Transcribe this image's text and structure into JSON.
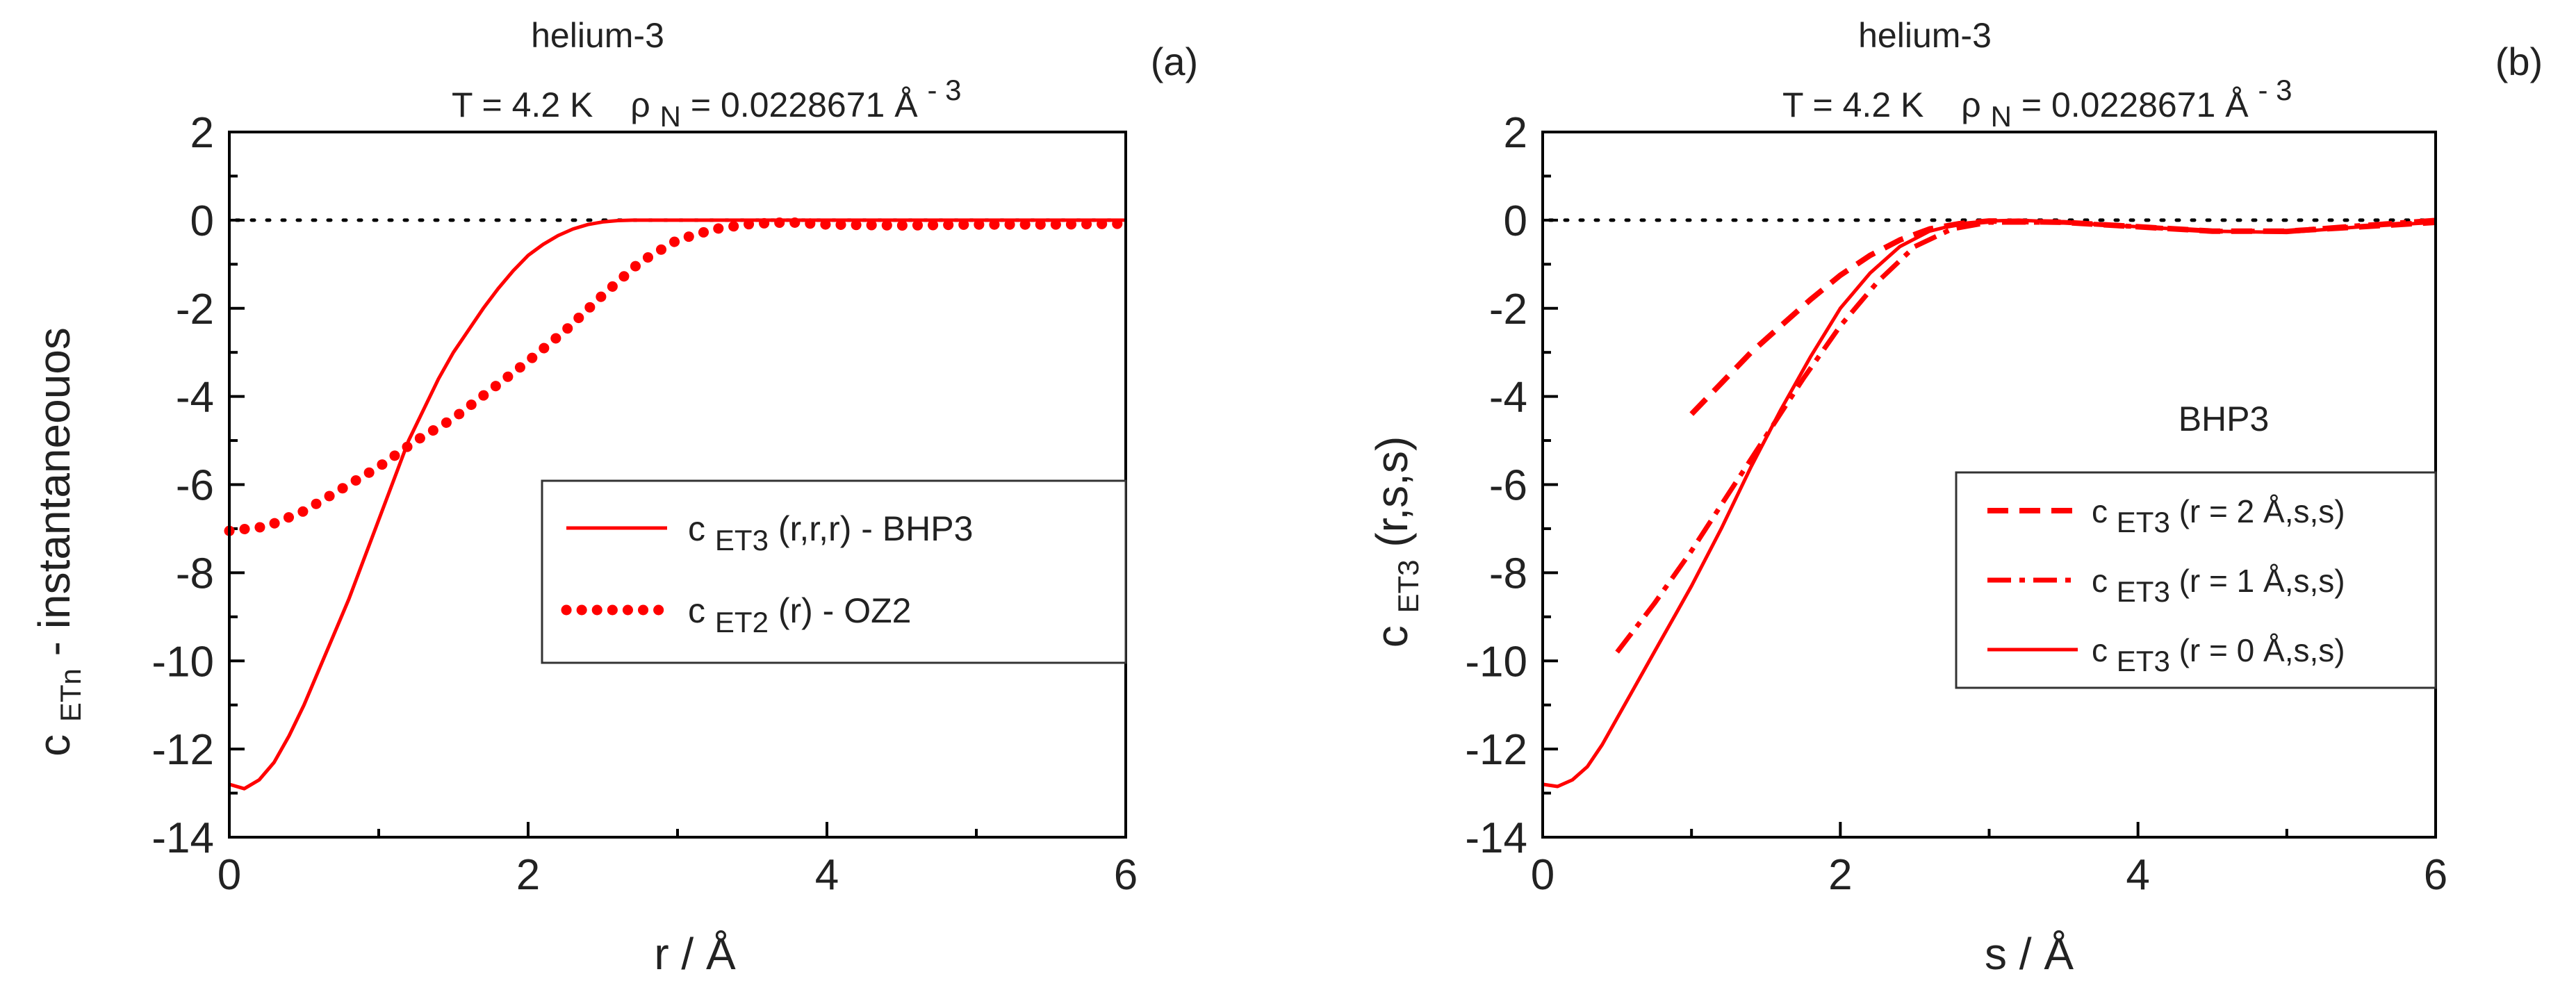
{
  "chart_data": [
    {
      "type": "line",
      "panel_label": "(a)",
      "title": "helium-3",
      "subtitle": {
        "temp": "T = 4.2 K",
        "rho_symbol": "ρ",
        "rho_sub": "N",
        "rho_value": " = 0.0228671 Å",
        "rho_sup": "- 3"
      },
      "xlabel": "r / Å",
      "ylabel": {
        "main": "c",
        "sub": "ETn",
        "rest": " - instantaneouos"
      },
      "xlim": [
        0,
        6
      ],
      "ylim": [
        -14,
        2
      ],
      "xticks": [
        0,
        2,
        4,
        6
      ],
      "yticks": [
        2,
        0,
        -2,
        -4,
        -6,
        -8,
        -10,
        -12,
        -14
      ],
      "zero_line": true,
      "legend_position": "center-right",
      "legend": [
        {
          "main": "c",
          "sub": "ET3",
          "rest": "(r,r,r) - BHP3"
        },
        {
          "main": "c",
          "sub": "ET2",
          "rest": "(r) - OZ2"
        }
      ],
      "series": [
        {
          "name": "cET3(r,r,r) - BHP3",
          "style": "solid",
          "color": "#ff0000",
          "x": [
            0,
            0.1,
            0.2,
            0.3,
            0.4,
            0.5,
            0.6,
            0.7,
            0.8,
            0.9,
            1.0,
            1.1,
            1.2,
            1.3,
            1.4,
            1.5,
            1.6,
            1.7,
            1.8,
            1.9,
            2.0,
            2.1,
            2.2,
            2.3,
            2.4,
            2.5,
            2.6,
            2.7,
            2.8,
            2.9,
            3.0,
            3.5,
            4.0,
            4.5,
            5.0,
            5.5,
            6.0
          ],
          "y": [
            -12.8,
            -12.9,
            -12.7,
            -12.3,
            -11.7,
            -11.0,
            -10.2,
            -9.4,
            -8.6,
            -7.7,
            -6.8,
            -5.9,
            -5.0,
            -4.3,
            -3.6,
            -3.0,
            -2.5,
            -2.0,
            -1.55,
            -1.15,
            -0.8,
            -0.55,
            -0.35,
            -0.2,
            -0.1,
            -0.04,
            -0.01,
            0,
            0,
            0,
            0,
            0,
            0,
            0,
            0,
            0,
            0
          ]
        },
        {
          "name": "cET2(r) - OZ2",
          "style": "dotted",
          "color": "#ff0000",
          "x": [
            0,
            0.25,
            0.5,
            0.75,
            1.0,
            1.25,
            1.5,
            1.75,
            2.0,
            2.25,
            2.5,
            2.75,
            3.0,
            3.25,
            3.5,
            3.75,
            4.0,
            4.5,
            5.0,
            5.5,
            6.0
          ],
          "y": [
            -7.05,
            -6.95,
            -6.6,
            -6.1,
            -5.6,
            -5.0,
            -4.5,
            -3.85,
            -3.2,
            -2.5,
            -1.7,
            -0.95,
            -0.45,
            -0.2,
            -0.08,
            -0.05,
            -0.1,
            -0.12,
            -0.1,
            -0.1,
            -0.08
          ]
        }
      ]
    },
    {
      "type": "line",
      "panel_label": "(b)",
      "title": "helium-3",
      "subtitle": {
        "temp": "T = 4.2 K",
        "rho_symbol": "ρ",
        "rho_sub": "N",
        "rho_value": " = 0.0228671 Å",
        "rho_sup": "- 3"
      },
      "xlabel": "s / Å",
      "ylabel": {
        "main": "c",
        "sub": "ET3",
        "rest": "(r,s,s)"
      },
      "annotation": "BHP3",
      "xlim": [
        0,
        6
      ],
      "ylim": [
        -14,
        2
      ],
      "xticks": [
        0,
        2,
        4,
        6
      ],
      "yticks": [
        2,
        0,
        -2,
        -4,
        -6,
        -8,
        -10,
        -12,
        -14
      ],
      "zero_line": true,
      "legend_position": "lower-right",
      "legend": [
        {
          "main": "c",
          "sub": "ET3",
          "rest": "(r = 2 Å,s,s)"
        },
        {
          "main": "c",
          "sub": "ET3",
          "rest": "(r = 1 Å,s,s)"
        },
        {
          "main": "c",
          "sub": "ET3",
          "rest": "(r = 0 Å,s,s)"
        }
      ],
      "series": [
        {
          "name": "cET3(r = 2 Å,s,s)",
          "style": "dashed",
          "color": "#ff0000",
          "x": [
            1.0,
            1.2,
            1.4,
            1.6,
            1.8,
            2.0,
            2.2,
            2.4,
            2.6,
            2.8,
            3.0,
            3.5,
            4.0,
            4.5,
            5.0,
            5.5,
            6.0
          ],
          "y": [
            -4.4,
            -3.7,
            -3.0,
            -2.4,
            -1.8,
            -1.25,
            -0.8,
            -0.45,
            -0.2,
            -0.08,
            -0.02,
            -0.05,
            -0.15,
            -0.25,
            -0.25,
            -0.15,
            -0.05
          ]
        },
        {
          "name": "cET3(r = 1 Å,s,s)",
          "style": "dashdot",
          "color": "#ff0000",
          "x": [
            0.5,
            0.75,
            1.0,
            1.25,
            1.5,
            1.75,
            2.0,
            2.25,
            2.5,
            2.75,
            3.0,
            3.5,
            4.0,
            4.5,
            5.0,
            5.5,
            6.0
          ],
          "y": [
            -9.8,
            -8.7,
            -7.5,
            -6.2,
            -4.9,
            -3.6,
            -2.4,
            -1.4,
            -0.6,
            -0.2,
            -0.05,
            -0.05,
            -0.15,
            -0.25,
            -0.25,
            -0.12,
            0.0
          ]
        },
        {
          "name": "cET3(r = 0 Å,s,s)",
          "style": "solid",
          "color": "#ff0000",
          "x": [
            0,
            0.1,
            0.2,
            0.3,
            0.4,
            0.5,
            0.6,
            0.7,
            0.8,
            0.9,
            1.0,
            1.2,
            1.4,
            1.6,
            1.8,
            2.0,
            2.2,
            2.4,
            2.6,
            2.8,
            3.0,
            3.2,
            3.5,
            4.0,
            4.5,
            5.0,
            5.5,
            6.0
          ],
          "y": [
            -12.8,
            -12.85,
            -12.7,
            -12.4,
            -11.9,
            -11.3,
            -10.7,
            -10.1,
            -9.5,
            -8.9,
            -8.3,
            -7.0,
            -5.6,
            -4.3,
            -3.1,
            -2.0,
            -1.2,
            -0.6,
            -0.25,
            -0.08,
            -0.02,
            0,
            -0.05,
            -0.15,
            -0.25,
            -0.28,
            -0.15,
            -0.05
          ]
        }
      ]
    }
  ]
}
